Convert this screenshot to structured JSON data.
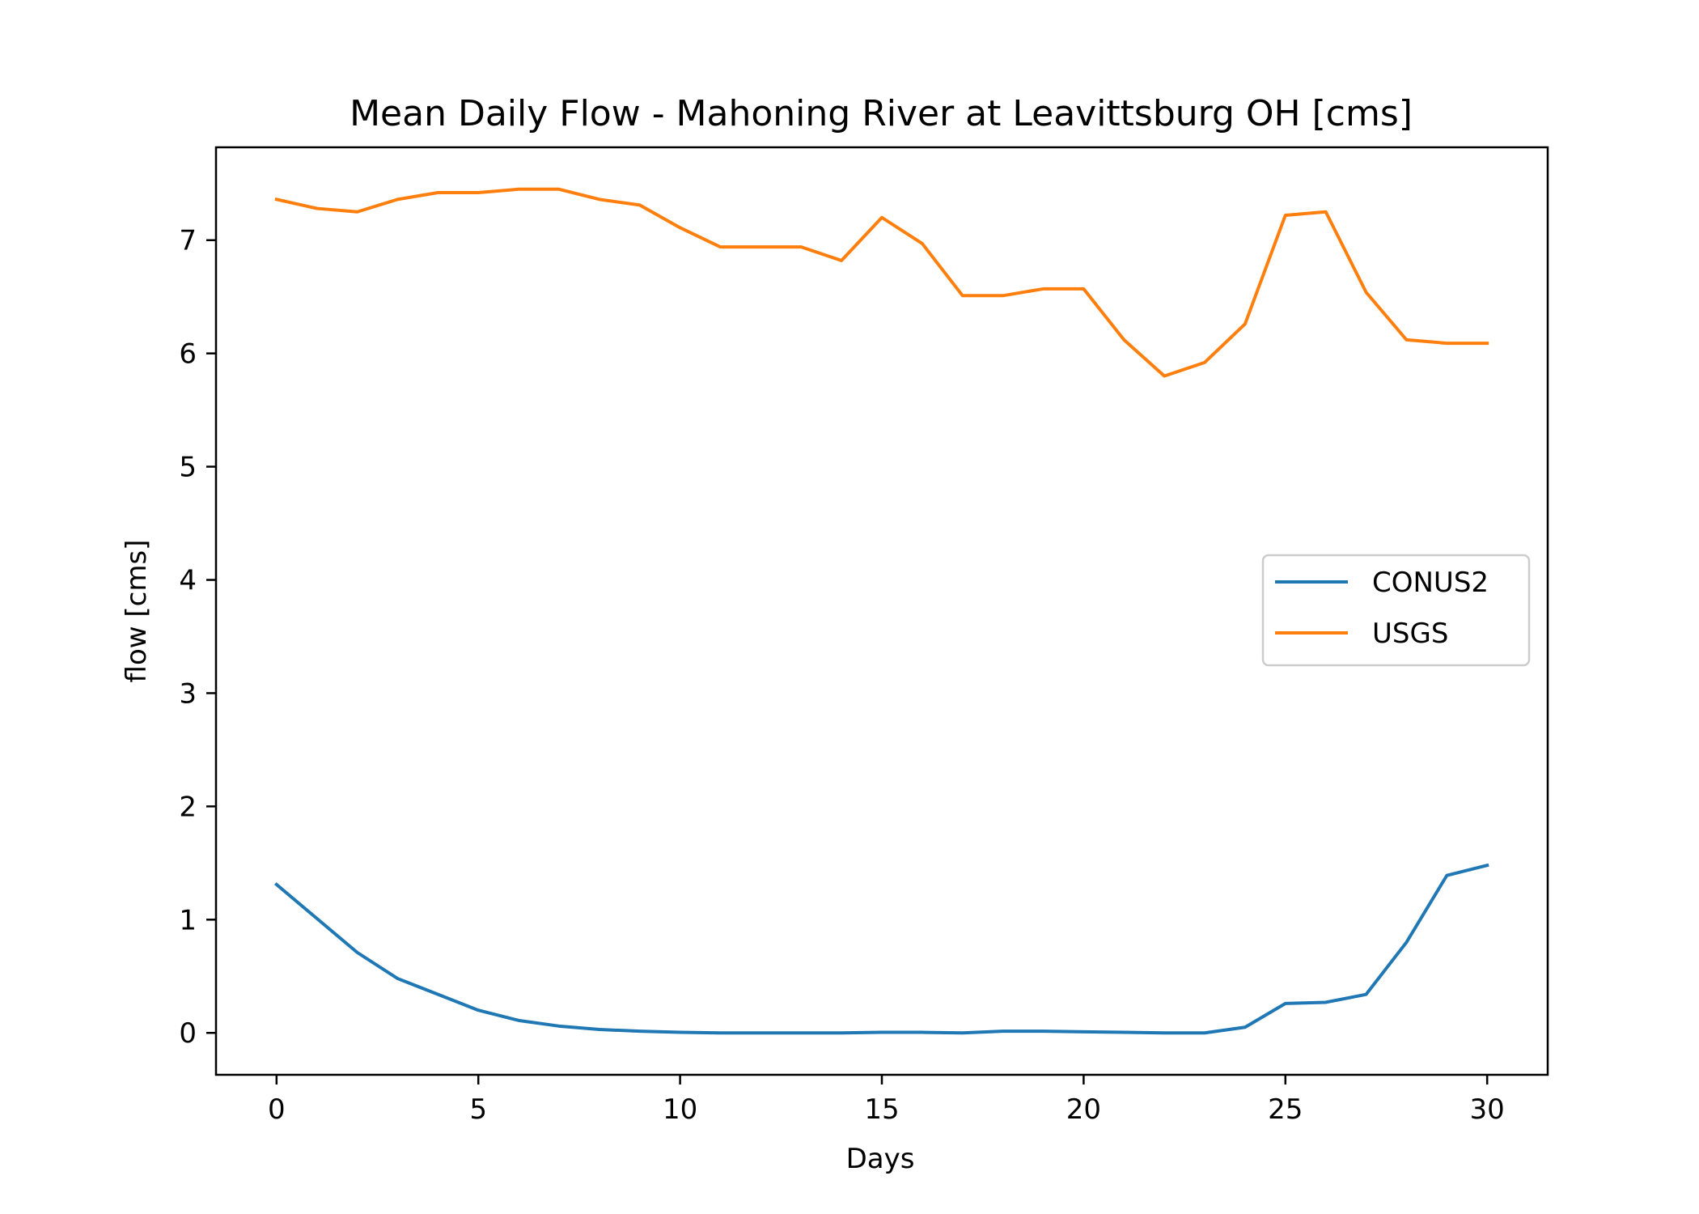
{
  "chart_data": {
    "type": "line",
    "title": "Mean Daily Flow - Mahoning River at Leavittsburg OH [cms]",
    "xlabel": "Days",
    "ylabel": "flow [cms]",
    "xlim": [
      -1.5,
      31.5
    ],
    "ylim": [
      -0.37,
      7.82
    ],
    "xticks": [
      0,
      5,
      10,
      15,
      20,
      25,
      30
    ],
    "yticks": [
      0,
      1,
      2,
      3,
      4,
      5,
      6,
      7
    ],
    "grid": false,
    "legend_position": "center-right",
    "x": [
      0,
      1,
      2,
      3,
      4,
      5,
      6,
      7,
      8,
      9,
      10,
      11,
      12,
      13,
      14,
      15,
      16,
      17,
      18,
      19,
      20,
      21,
      22,
      23,
      24,
      25,
      26,
      27,
      28,
      29,
      30
    ],
    "series": [
      {
        "name": "CONUS2",
        "color": "#1f77b4",
        "values": [
          1.31,
          1.01,
          0.71,
          0.48,
          0.34,
          0.2,
          0.11,
          0.06,
          0.03,
          0.015,
          0.005,
          0.0,
          0.0,
          0.0,
          0.0,
          0.005,
          0.005,
          0.0,
          0.015,
          0.015,
          0.01,
          0.005,
          0.0,
          0.0,
          0.05,
          0.26,
          0.27,
          0.34,
          0.8,
          1.39,
          1.48
        ]
      },
      {
        "name": "USGS",
        "color": "#ff7f0e",
        "values": [
          7.36,
          7.28,
          7.25,
          7.36,
          7.42,
          7.42,
          7.45,
          7.45,
          7.36,
          7.31,
          7.11,
          6.94,
          6.94,
          6.94,
          6.82,
          7.2,
          6.97,
          6.51,
          6.51,
          6.57,
          6.57,
          6.12,
          5.8,
          5.92,
          6.26,
          7.22,
          7.25,
          6.54,
          6.12,
          6.09,
          6.09
        ]
      }
    ]
  }
}
